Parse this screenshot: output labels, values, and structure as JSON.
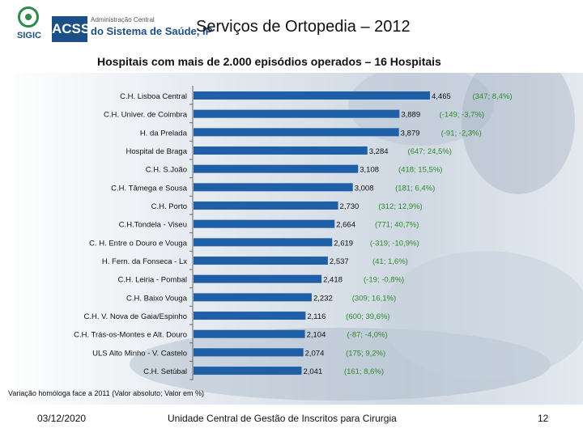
{
  "header": {
    "logo_sigic": "SIGIC",
    "logo_acss_box": "ACSS",
    "logo_acss_line1": "Administração Central",
    "logo_acss_line2": "do Sistema de Saúde, IP",
    "title": "Serviços de Ortopedia – 2012"
  },
  "footnote": "Variação homóloga face a 2011 (Valor absoluto; Valor em %)",
  "footer": {
    "date": "03/12/2020",
    "unit": "Unidade Central de Gestão de Inscritos para Cirurgia",
    "page": "12"
  },
  "colors": {
    "bar": "#1f5fa8",
    "variation": "#2e8b2e",
    "negative_variation": "#c0392b"
  },
  "chart_data": {
    "type": "bar",
    "orientation": "horizontal",
    "title": "Hospitais com mais de 2.000 episódios operados – 16 Hospitais",
    "categories": [
      "C.H. Lisboa Central",
      "C.H. Univer. de Coimbra",
      "H. da Prelada",
      "Hospital de Braga",
      "C.H. S.João",
      "C.H. Tâmega e Sousa",
      "C.H. Porto",
      "C.H.Tondela - Viseu",
      "C. H. Entre o Douro e Vouga",
      "H. Fern. da Fonseca - Lx",
      "C.H. Leiria - Pombal",
      "C.H. Baixo Vouga",
      "C.H. V. Nova de Gaia/Espinho",
      "C.H. Trás-os-Montes e Alt. Douro",
      "ULS Alto Minho - V. Castelo",
      "C.H. Setúbal"
    ],
    "values": [
      4465,
      3889,
      3879,
      3284,
      3108,
      3008,
      2730,
      2664,
      2619,
      2537,
      2418,
      2232,
      2116,
      2104,
      2074,
      2041
    ],
    "value_labels": [
      "4,465",
      "3,889",
      "3,879",
      "3,284",
      "3,108",
      "3,008",
      "2,730",
      "2,664",
      "2,619",
      "2,537",
      "2,418",
      "2,232",
      "2,116",
      "2,104",
      "2,074",
      "2,041"
    ],
    "variation_labels": [
      "(347; 8,4%)",
      "(-149; -3,7%)",
      "(-91; -2,3%)",
      "(647; 24,5%)",
      "(418; 15,5%)",
      "(181; 6,4%)",
      "(312; 12,9%)",
      "(771; 40,7%)",
      "(-319; -10,9%)",
      "(41; 1,6%)",
      "(-19; -0,8%)",
      "(309; 16,1%)",
      "(600; 39,6%)",
      "(-87; -4,0%)",
      "(175; 9,2%)",
      "(161; 8,6%)"
    ],
    "xlim": [
      0,
      5000
    ],
    "grid": false,
    "legend": "none"
  }
}
